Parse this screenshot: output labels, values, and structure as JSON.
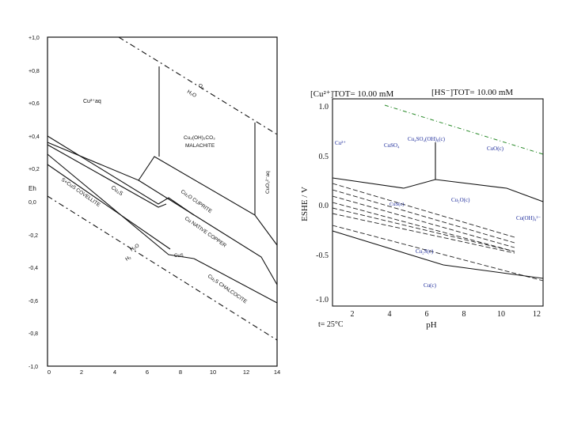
{
  "left": {
    "y_axis_title": "Eh",
    "y_ticks": [
      "+1,0",
      "+0,8",
      "+0,6",
      "+0,4",
      "+0,2",
      "0,0",
      "-0,2",
      "-0,4",
      "-0,6",
      "-0,8",
      "-1,0"
    ],
    "x_ticks": [
      "0",
      "2",
      "4",
      "6",
      "8",
      "10",
      "12",
      "14"
    ],
    "labels": {
      "cu2aq": "Cu²⁺aq",
      "o2": "O₂",
      "h2o_top": "H₂O",
      "malachite_formula": "Cu₂(OH)₂CO₃",
      "malachite": "MALACHITE",
      "cuo2": "CuO₂²⁻aq",
      "cu2s": "Cu₂S",
      "covellite": "S+CuS  COVELLITE",
      "cuprite": "Cu₂O CUPRITE",
      "native_copper": "Cu NATIVE COPPER",
      "h2o_bot": "H₂O",
      "h2": "H₂",
      "cus_small": "CuS",
      "chalcocite": "Cu₂S CHALCOCITE"
    }
  },
  "right": {
    "header_left": "[Cu²⁺]TOT=   10.00 mM",
    "header_right": "[HS⁻]TOT=   10.00 mM",
    "y_axis_title": "ESHE / V",
    "x_axis_title": "pH",
    "temperature": "t= 25°C",
    "y_ticks": [
      "1.0",
      "0.5",
      "0.0",
      "-0.5",
      "-1.0"
    ],
    "x_ticks": [
      "2",
      "4",
      "6",
      "8",
      "10",
      "12"
    ],
    "labels": {
      "cu2plus": "Cu²⁺",
      "cuso4": "CuSO₄",
      "cu4so4oh6": "Cu₄SO₄(OH)₆(c)",
      "cuoc": "CuO(c)",
      "cu2oc": "Cu₂O(c)",
      "cuoh4": "Cu(OH)₄²⁻",
      "cus_c": "CuS(c)",
      "cu2sc": "Cu₂S(c)",
      "cuc": "Cu(c)"
    }
  }
}
